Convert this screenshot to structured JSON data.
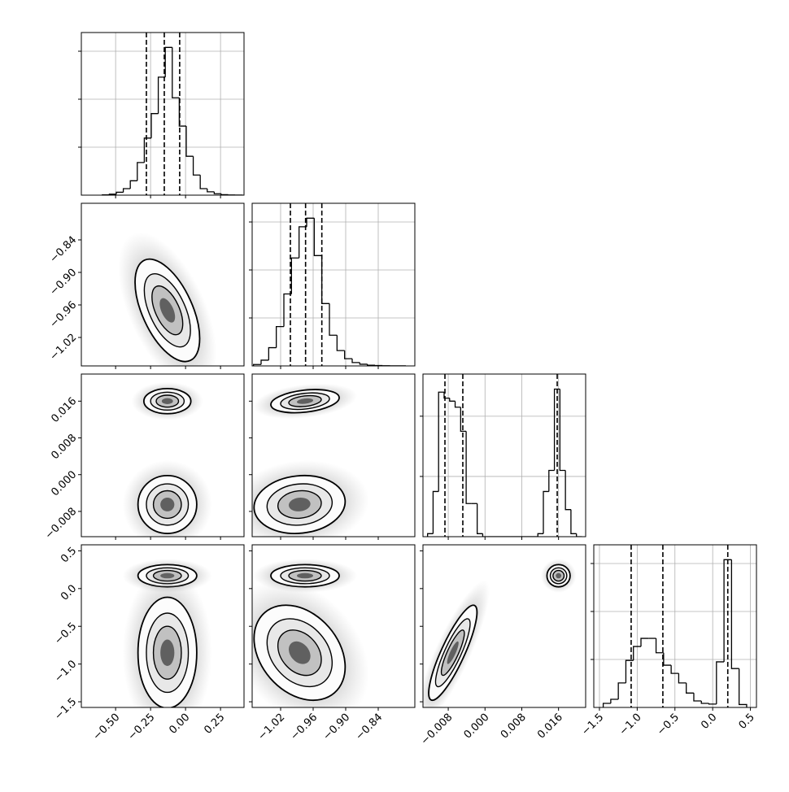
{
  "chart_data": {
    "type": "corner",
    "params": [
      {
        "lim": [
          -0.745,
          0.418
        ],
        "ticks": [
          {
            "value": -0.5,
            "label": "−0.50"
          },
          {
            "value": -0.25,
            "label": "−0.25"
          },
          {
            "value": 0,
            "label": "0.00"
          },
          {
            "value": 0.25,
            "label": "0.25"
          }
        ],
        "hist": {
          "bins": [
            -0.595,
            -0.545,
            -0.495,
            -0.445,
            -0.395,
            -0.345,
            -0.295,
            -0.245,
            -0.195,
            -0.145,
            -0.095,
            -0.045,
            0.005,
            0.055,
            0.105,
            0.155,
            0.205,
            0.255,
            0.305,
            0.355,
            0.405
          ],
          "counts": [
            5,
            20,
            60,
            135,
            300,
            680,
            1190,
            1700,
            2460,
            3080,
            2030,
            1440,
            810,
            420,
            135,
            70,
            30,
            10,
            3,
            1
          ],
          "ylim": [
            0,
            3390
          ],
          "yticks": [
            1000,
            2000,
            3000
          ],
          "quantiles": [
            -0.28,
            -0.152,
            -0.042
          ],
          "grid": true
        },
        "pairs": []
      },
      {
        "lim": [
          -1.0725,
          -0.7725
        ],
        "ticks": [
          {
            "value": -1.02,
            "label": "−1.02"
          },
          {
            "value": -0.96,
            "label": "−0.96"
          },
          {
            "value": -0.9,
            "label": "−0.90"
          },
          {
            "value": -0.84,
            "label": "−0.84"
          }
        ],
        "hist": {
          "bins": [
            -1.07,
            -1.056,
            -1.042,
            -1.028,
            -1.014,
            -1.0,
            -0.986,
            -0.972,
            -0.958,
            -0.944,
            -0.93,
            -0.916,
            -0.902,
            -0.888,
            -0.874,
            -0.86,
            -0.846,
            -0.832,
            -0.818,
            -0.804,
            -0.79
          ],
          "counts": [
            30,
            120,
            380,
            820,
            1500,
            2250,
            2900,
            3080,
            2300,
            1300,
            640,
            320,
            150,
            70,
            35,
            15,
            8,
            4,
            2,
            1
          ],
          "ylim": [
            0,
            3390
          ],
          "yticks": [
            1000,
            2000,
            3000
          ],
          "quantiles": [
            -1.002,
            -0.974,
            -0.944
          ],
          "grid": true
        },
        "pairs": [
          {
            "modes": [
              {
                "x": -0.13,
                "y": -0.97,
                "sx": 0.11,
                "sy": 0.045,
                "rho": -0.55
              }
            ]
          }
        ]
      },
      {
        "lim": [
          -0.0135,
          0.0219
        ],
        "ticks": [
          {
            "value": -0.008,
            "label": "−0.008"
          },
          {
            "value": 0,
            "label": "0.000"
          },
          {
            "value": 0.008,
            "label": "0.008"
          },
          {
            "value": 0.016,
            "label": "0.016"
          }
        ],
        "hist": {
          "bins": [
            -0.0125,
            -0.0113,
            -0.0101,
            -0.0089,
            -0.0077,
            -0.0065,
            -0.0053,
            -0.0041,
            -0.0029,
            -0.0017,
            -0.0005,
            0.0007,
            0.0019,
            0.0031,
            0.0043,
            0.0055,
            0.0067,
            0.0079,
            0.0091,
            0.0103,
            0.0115,
            0.0127,
            0.0139,
            0.0151,
            0.0163,
            0.0175,
            0.0187,
            0.0199,
            0.0211
          ],
          "counts": [
            100,
            1500,
            4800,
            4600,
            4500,
            4300,
            3500,
            1100,
            1100,
            100,
            0,
            0,
            0,
            0,
            0,
            0,
            0,
            0,
            0,
            0,
            100,
            1500,
            2200,
            4900,
            2200,
            900,
            100,
            0
          ],
          "ylim": [
            0,
            5400
          ],
          "yticks": [
            2000,
            4000
          ],
          "quantiles": [
            -0.00872,
            -0.00483,
            0.01571
          ],
          "grid": true
        },
        "pairs": [
          {
            "modes": [
              {
                "x": -0.13,
                "y": 0.016,
                "sx": 0.08,
                "sy": 0.0013,
                "rho": 0
              },
              {
                "x": -0.13,
                "y": -0.0065,
                "sx": 0.1,
                "sy": 0.003,
                "rho": 0
              }
            ]
          },
          {
            "modes": [
              {
                "x": -0.975,
                "y": 0.016,
                "sx": 0.03,
                "sy": 0.0012,
                "rho": 0.3
              },
              {
                "x": -0.985,
                "y": -0.0065,
                "sx": 0.04,
                "sy": 0.003,
                "rho": 0.1
              }
            ]
          }
        ]
      },
      {
        "lim": [
          -1.575,
          0.58
        ],
        "ticks": [
          {
            "value": -1.5,
            "label": "−1.5"
          },
          {
            "value": -1,
            "label": "−1.0"
          },
          {
            "value": -0.5,
            "label": "−0.5"
          },
          {
            "value": 0,
            "label": "0.0"
          },
          {
            "value": 0.5,
            "label": "0.5"
          }
        ],
        "hist": {
          "bins": [
            -1.45,
            -1.35,
            -1.25,
            -1.15,
            -1.05,
            -0.95,
            -0.85,
            -0.75,
            -0.65,
            -0.55,
            -0.45,
            -0.35,
            -0.25,
            -0.15,
            -0.05,
            0.05,
            0.15,
            0.25,
            0.35,
            0.45
          ],
          "counts": [
            85,
            170,
            510,
            980,
            1270,
            1440,
            1440,
            1140,
            880,
            710,
            510,
            300,
            135,
            85,
            70,
            950,
            3080,
            810,
            60
          ],
          "ylim": [
            0,
            3390
          ],
          "yticks": [
            1000,
            2000,
            3000
          ],
          "quantiles": [
            -1.08,
            -0.66,
            0.2
          ],
          "grid": true
        },
        "pairs": [
          {
            "modes": [
              {
                "x": -0.13,
                "y": 0.17,
                "sx": 0.1,
                "sy": 0.07,
                "rho": 0
              },
              {
                "x": -0.13,
                "y": -0.85,
                "sx": 0.1,
                "sy": 0.35,
                "rho": 0
              }
            ]
          },
          {
            "modes": [
              {
                "x": -0.975,
                "y": 0.17,
                "sx": 0.03,
                "sy": 0.07,
                "rho": 0
              },
              {
                "x": -0.985,
                "y": -0.85,
                "sx": 0.04,
                "sy": 0.3,
                "rho": -0.3
              }
            ]
          },
          {
            "modes": [
              {
                "x": 0.016,
                "y": 0.17,
                "sx": 0.0012,
                "sy": 0.07,
                "rho": 0
              },
              {
                "x": -0.007,
                "y": -0.85,
                "sx": 0.0025,
                "sy": 0.3,
                "rho": 0.85
              }
            ]
          }
        ]
      }
    ]
  }
}
